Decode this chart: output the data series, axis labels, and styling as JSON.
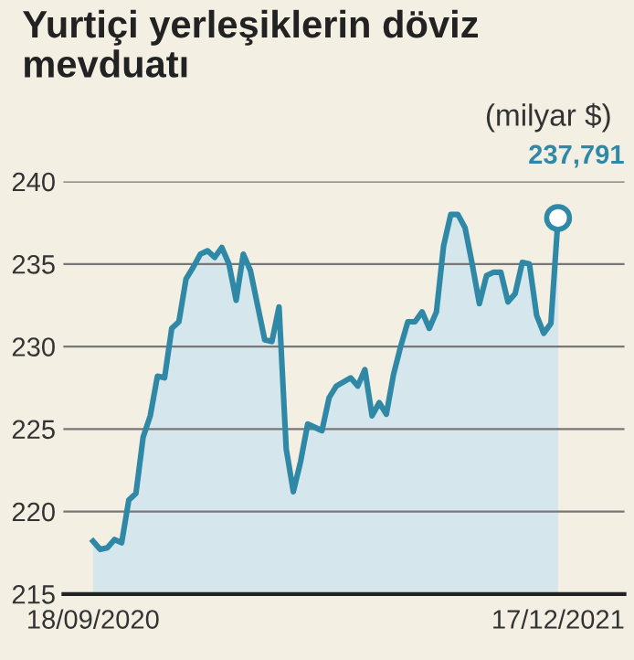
{
  "chart_data": {
    "type": "area",
    "title": "Yurtiçi yerleşiklerin döviz mevduatı",
    "subtitle": "(milyar $)",
    "x": [
      "2020-09-18",
      "2020-09-25",
      "2020-10-02",
      "2020-10-09",
      "2020-10-16",
      "2020-10-23",
      "2020-10-30",
      "2020-11-06",
      "2020-11-13",
      "2020-11-20",
      "2020-11-27",
      "2020-12-04",
      "2020-12-11",
      "2020-12-18",
      "2020-12-25",
      "2021-01-01",
      "2021-01-08",
      "2021-01-15",
      "2021-01-22",
      "2021-01-29",
      "2021-02-05",
      "2021-02-12",
      "2021-02-19",
      "2021-03-05",
      "2021-03-12",
      "2021-03-19",
      "2021-03-26",
      "2021-04-02",
      "2021-04-09",
      "2021-04-16",
      "2021-04-30",
      "2021-05-07",
      "2021-05-14",
      "2021-05-28",
      "2021-06-04",
      "2021-06-11",
      "2021-06-18",
      "2021-06-25",
      "2021-07-02",
      "2021-07-09",
      "2021-07-16",
      "2021-07-23",
      "2021-07-30",
      "2021-08-06",
      "2021-08-13",
      "2021-08-20",
      "2021-08-27",
      "2021-09-03",
      "2021-09-10",
      "2021-09-17",
      "2021-09-24",
      "2021-10-01",
      "2021-10-08",
      "2021-10-15",
      "2021-10-22",
      "2021-10-29",
      "2021-11-05",
      "2021-11-12",
      "2021-11-19",
      "2021-11-26",
      "2021-12-03",
      "2021-12-10",
      "2021-12-17"
    ],
    "series": [
      {
        "color": "#2e88a6",
        "values": [
          218.2,
          217.7,
          217.8,
          218.3,
          218.1,
          220.7,
          221.1,
          224.5,
          225.8,
          228.2,
          228.1,
          231.1,
          231.5,
          234.1,
          234.8,
          235.6,
          235.8,
          235.4,
          236.0,
          235.0,
          232.8,
          235.6,
          234.6,
          230.4,
          230.3,
          232.4,
          223.8,
          221.2,
          223.0,
          225.3,
          224.9,
          226.9,
          227.6,
          228.1,
          227.6,
          228.6,
          225.8,
          226.6,
          225.9,
          228.3,
          230.0,
          231.5,
          231.5,
          232.1,
          231.1,
          232.1,
          236.1,
          238.0,
          238.0,
          237.2,
          235.0,
          232.6,
          234.3,
          234.5,
          234.5,
          232.7,
          233.2,
          235.1,
          235.0,
          231.9,
          230.8,
          231.4,
          237.791
        ]
      }
    ],
    "xlim": [
      "2020-08-20",
      "2022-02-20"
    ],
    "xticks": [
      {
        "value": "2020-09-18",
        "label": "18/09/2020"
      },
      {
        "value": "2021-12-17",
        "label": "17/12/2021"
      }
    ],
    "ylim": [
      215,
      240
    ],
    "yticks": [
      215,
      220,
      225,
      230,
      235,
      240
    ],
    "grid": "y",
    "annotations": [
      {
        "text": "237,791",
        "x": "2021-12-17",
        "y": 237.791
      }
    ]
  }
}
